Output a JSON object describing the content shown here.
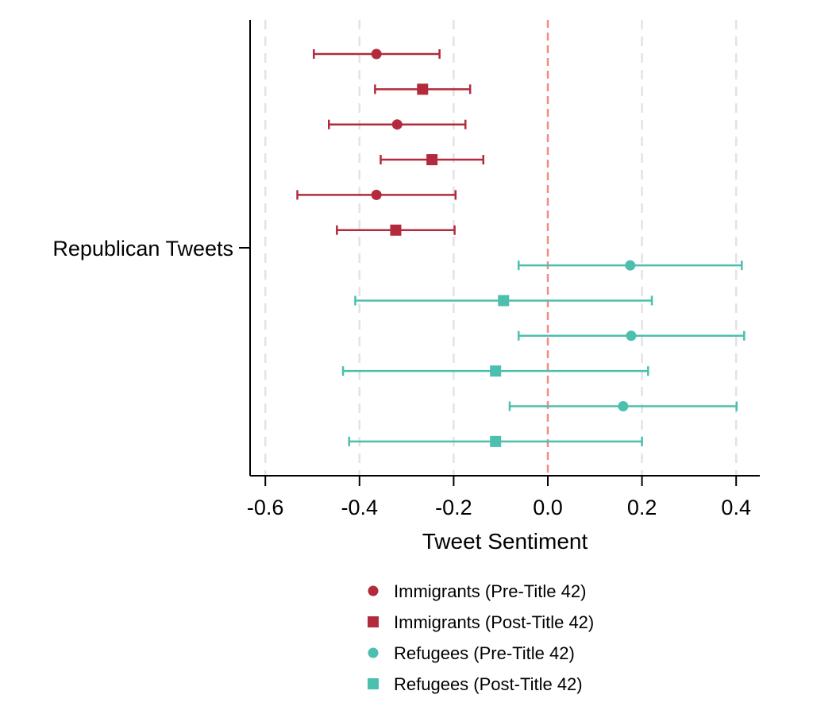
{
  "chart_data": {
    "type": "scatter",
    "subtype": "coefficient-plot-with-error-bars",
    "orientation": "horizontal",
    "title": "",
    "xlabel": "Tweet Sentiment",
    "ylabel": "",
    "y_category": "Republican Tweets",
    "xlim": [
      -0.635,
      0.45
    ],
    "xticks": [
      "-0.6",
      "-0.4",
      "-0.2",
      "0.0",
      "0.2",
      "0.4"
    ],
    "xtick_values": [
      -0.6,
      -0.4,
      -0.2,
      0.0,
      0.2,
      0.4
    ],
    "reference_line": {
      "x": 0.0,
      "style": "dashed",
      "color": "#f08c84"
    },
    "vertical_gridlines": "dashed",
    "legend_placement": "bottom-center",
    "colors": {
      "immigrants": "#b22a3c",
      "refugees": "#4dbfae"
    },
    "series": [
      {
        "name": "Immigrants (Pre-Title 42)",
        "marker": "circle",
        "color": "#b22a3c",
        "points": [
          {
            "estimate": -0.364,
            "ci": [
              -0.497,
              -0.23
            ]
          },
          {
            "estimate": -0.32,
            "ci": [
              -0.465,
              -0.175
            ]
          },
          {
            "estimate": -0.364,
            "ci": [
              -0.532,
              -0.196
            ]
          }
        ]
      },
      {
        "name": "Immigrants (Post-Title 42)",
        "marker": "square",
        "color": "#b22a3c",
        "points": [
          {
            "estimate": -0.266,
            "ci": [
              -0.367,
              -0.165
            ]
          },
          {
            "estimate": -0.246,
            "ci": [
              -0.355,
              -0.137
            ]
          },
          {
            "estimate": -0.323,
            "ci": [
              -0.448,
              -0.198
            ]
          }
        ]
      },
      {
        "name": "Refugees (Pre-Title 42)",
        "marker": "circle",
        "color": "#4dbfae",
        "points": [
          {
            "estimate": 0.175,
            "ci": [
              -0.062,
              0.412
            ]
          },
          {
            "estimate": 0.177,
            "ci": [
              -0.062,
              0.417
            ]
          },
          {
            "estimate": 0.16,
            "ci": [
              -0.081,
              0.401
            ]
          }
        ]
      },
      {
        "name": "Refugees (Post-Title 42)",
        "marker": "square",
        "color": "#4dbfae",
        "points": [
          {
            "estimate": -0.094,
            "ci": [
              -0.409,
              0.221
            ]
          },
          {
            "estimate": -0.111,
            "ci": [
              -0.435,
              0.213
            ]
          },
          {
            "estimate": -0.111,
            "ci": [
              -0.422,
              0.2
            ]
          }
        ]
      }
    ],
    "row_order": [
      [
        "Immigrants (Pre-Title 42)",
        0
      ],
      [
        "Immigrants (Post-Title 42)",
        0
      ],
      [
        "Immigrants (Pre-Title 42)",
        1
      ],
      [
        "Immigrants (Post-Title 42)",
        1
      ],
      [
        "Immigrants (Pre-Title 42)",
        2
      ],
      [
        "Immigrants (Post-Title 42)",
        2
      ],
      [
        "Refugees (Pre-Title 42)",
        0
      ],
      [
        "Refugees (Post-Title 42)",
        0
      ],
      [
        "Refugees (Pre-Title 42)",
        1
      ],
      [
        "Refugees (Post-Title 42)",
        1
      ],
      [
        "Refugees (Pre-Title 42)",
        2
      ],
      [
        "Refugees (Post-Title 42)",
        2
      ]
    ]
  }
}
